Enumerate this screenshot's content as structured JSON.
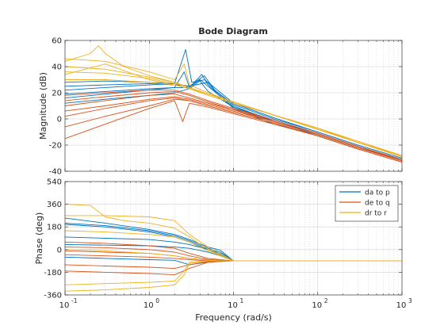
{
  "chart_data": {
    "type": "line",
    "title": "Bode Diagram",
    "xlabel": "Frequency  (rad/s)",
    "x_scale": "log",
    "xlim": [
      0.1,
      1000
    ],
    "x_ticks": [
      {
        "value": 0.1,
        "base": "10",
        "exp": "-1"
      },
      {
        "value": 1,
        "base": "10",
        "exp": "0"
      },
      {
        "value": 10,
        "base": "10",
        "exp": "1"
      },
      {
        "value": 100,
        "base": "10",
        "exp": "2"
      },
      {
        "value": 1000,
        "base": "10",
        "exp": "3"
      }
    ],
    "grid": true,
    "colors": {
      "da to p": "#0072BD",
      "de to q": "#D95319",
      "dr to r": "#EDB120"
    },
    "legend": {
      "placement": "top-right of phase plot",
      "entries": [
        "da to p",
        "de to q",
        "dr to r"
      ]
    },
    "magnitude": {
      "ylabel": "Magnitude (dB)",
      "ylim": [
        -40,
        60
      ],
      "y_ticks": [
        -40,
        -20,
        0,
        20,
        40,
        60
      ],
      "series": [
        {
          "name": "da to p",
          "x": [
            0.1,
            0.3,
            1,
            2,
            2.6,
            3,
            4.2,
            5,
            10,
            30,
            100,
            300,
            1000
          ],
          "y": [
            16,
            19,
            22,
            24,
            36,
            24,
            34,
            26,
            8,
            -4,
            -12,
            -22,
            -31
          ]
        },
        {
          "name": "da to p",
          "x": [
            0.1,
            0.3,
            1,
            2,
            2.7,
            3.2,
            4.6,
            6,
            10,
            30,
            100,
            300,
            1000
          ],
          "y": [
            22,
            24,
            26,
            27,
            53,
            28,
            30,
            22,
            10,
            -2,
            -11,
            -21,
            -31
          ]
        },
        {
          "name": "da to p",
          "x": [
            0.1,
            0.3,
            1,
            2,
            3,
            4,
            5,
            10,
            30,
            100,
            300,
            1000
          ],
          "y": [
            12,
            15,
            18,
            20,
            23,
            29,
            21,
            9,
            -2,
            -12,
            -22,
            -32
          ]
        },
        {
          "name": "da to p",
          "x": [
            0.1,
            0.3,
            1,
            2,
            3,
            4.5,
            6,
            10,
            30,
            100,
            300,
            1000
          ],
          "y": [
            28,
            29,
            28,
            27,
            25,
            33,
            22,
            11,
            0,
            -10,
            -20,
            -30
          ]
        },
        {
          "name": "da to p",
          "x": [
            0.1,
            0.3,
            1,
            2,
            3,
            4,
            10,
            30,
            100,
            300,
            1000
          ],
          "y": [
            19,
            21,
            23,
            24,
            24,
            30,
            9,
            -1,
            -11,
            -21,
            -31
          ]
        },
        {
          "name": "da to p",
          "x": [
            0.1,
            0.3,
            1,
            2,
            3,
            5,
            10,
            30,
            100,
            300,
            1000
          ],
          "y": [
            25,
            26,
            27,
            26,
            25,
            28,
            12,
            1,
            -10,
            -20,
            -30
          ]
        },
        {
          "name": "de to q",
          "x": [
            0.1,
            0.3,
            1,
            2,
            2.5,
            3,
            5,
            10,
            30,
            100,
            300,
            1000
          ],
          "y": [
            -15,
            -4,
            8,
            14,
            -2,
            12,
            9,
            4,
            -4,
            -13,
            -23,
            -33
          ]
        },
        {
          "name": "de to q",
          "x": [
            0.1,
            0.3,
            1,
            2,
            3,
            5,
            10,
            30,
            100,
            300,
            1000
          ],
          "y": [
            2,
            8,
            14,
            16,
            14,
            10,
            5,
            -3,
            -13,
            -23,
            -33
          ]
        },
        {
          "name": "de to q",
          "x": [
            0.1,
            0.3,
            1,
            2,
            3,
            5,
            10,
            30,
            100,
            300,
            1000
          ],
          "y": [
            6,
            10,
            15,
            17,
            15,
            11,
            6,
            -2,
            -12,
            -22,
            -32
          ]
        },
        {
          "name": "de to q",
          "x": [
            0.1,
            0.3,
            1,
            2,
            3,
            5,
            10,
            30,
            100,
            300,
            1000
          ],
          "y": [
            10,
            14,
            18,
            19,
            16,
            12,
            7,
            -2,
            -12,
            -22,
            -32
          ]
        },
        {
          "name": "de to q",
          "x": [
            0.1,
            0.3,
            1,
            2,
            3,
            5,
            10,
            30,
            100,
            300,
            1000
          ],
          "y": [
            14,
            17,
            20,
            21,
            18,
            13,
            7,
            -1,
            -11,
            -21,
            -31
          ]
        },
        {
          "name": "de to q",
          "x": [
            0.1,
            0.3,
            1,
            2,
            3,
            5,
            10,
            30,
            100,
            300,
            1000
          ],
          "y": [
            18,
            20,
            22,
            22,
            19,
            14,
            8,
            -1,
            -11,
            -21,
            -32
          ]
        },
        {
          "name": "de to q",
          "x": [
            0.1,
            0.3,
            1,
            2,
            3,
            5,
            10,
            30,
            100,
            300,
            1000
          ],
          "y": [
            -6,
            2,
            10,
            15,
            14,
            10,
            5,
            -3,
            -13,
            -23,
            -33
          ]
        },
        {
          "name": "dr to r",
          "x": [
            0.1,
            0.2,
            0.25,
            0.3,
            0.5,
            1,
            2,
            3,
            5,
            10,
            30,
            100,
            300,
            1000
          ],
          "y": [
            44,
            50,
            56,
            50,
            40,
            33,
            28,
            24,
            19,
            13,
            3,
            -7,
            -17,
            -28
          ]
        },
        {
          "name": "dr to r",
          "x": [
            0.1,
            0.3,
            1,
            2,
            2.6,
            3,
            5,
            10,
            30,
            100,
            300,
            1000
          ],
          "y": [
            46,
            44,
            36,
            30,
            42,
            26,
            20,
            13,
            3,
            -8,
            -18,
            -28
          ]
        },
        {
          "name": "dr to r",
          "x": [
            0.1,
            0.3,
            1,
            2,
            3,
            5,
            10,
            30,
            100,
            300,
            1000
          ],
          "y": [
            40,
            38,
            32,
            28,
            24,
            19,
            13,
            3,
            -7,
            -18,
            -28
          ]
        },
        {
          "name": "dr to r",
          "x": [
            0.1,
            0.3,
            1,
            2,
            3,
            5,
            10,
            30,
            100,
            300,
            1000
          ],
          "y": [
            36,
            35,
            31,
            27,
            24,
            19,
            13,
            3,
            -7,
            -18,
            -28
          ]
        },
        {
          "name": "dr to r",
          "x": [
            0.1,
            0.3,
            1,
            2,
            3,
            5,
            10,
            30,
            100,
            300,
            1000
          ],
          "y": [
            30,
            30,
            28,
            26,
            23,
            19,
            13,
            3,
            -8,
            -18,
            -29
          ]
        },
        {
          "name": "dr to r",
          "x": [
            0.1,
            0.3,
            1,
            2,
            3,
            5,
            10,
            30,
            100,
            300,
            1000
          ],
          "y": [
            34,
            42,
            30,
            26,
            23,
            18,
            12,
            3,
            -8,
            -18,
            -29
          ]
        }
      ]
    },
    "phase": {
      "ylabel": "Phase (deg)",
      "ylim": [
        -360,
        540
      ],
      "y_ticks": [
        -360,
        -180,
        0,
        180,
        360,
        540
      ],
      "series": [
        {
          "name": "da to p",
          "x": [
            0.1,
            0.3,
            1,
            2,
            3,
            5,
            7,
            10,
            1000
          ],
          "y": [
            250,
            210,
            160,
            120,
            80,
            20,
            -5,
            -90,
            -90
          ]
        },
        {
          "name": "da to p",
          "x": [
            0.1,
            0.3,
            1,
            2,
            3,
            5,
            7,
            10,
            1000
          ],
          "y": [
            210,
            190,
            150,
            110,
            70,
            10,
            -20,
            -90,
            -90
          ]
        },
        {
          "name": "da to p",
          "x": [
            0.1,
            0.3,
            1,
            2,
            3,
            5,
            7,
            10,
            1000
          ],
          "y": [
            200,
            180,
            140,
            100,
            60,
            0,
            -30,
            -90,
            -90
          ]
        },
        {
          "name": "da to p",
          "x": [
            0.1,
            0.3,
            1,
            2,
            3,
            5,
            7,
            10,
            1000
          ],
          "y": [
            100,
            90,
            80,
            60,
            40,
            0,
            -40,
            -90,
            -90
          ]
        },
        {
          "name": "da to p",
          "x": [
            0.1,
            0.3,
            1,
            2,
            3,
            5,
            7,
            10,
            1000
          ],
          "y": [
            40,
            35,
            30,
            20,
            10,
            -20,
            -50,
            -90,
            -90
          ]
        },
        {
          "name": "da to p",
          "x": [
            0.1,
            0.3,
            1,
            2,
            3,
            5,
            8,
            1000
          ],
          "y": [
            -60,
            -70,
            -80,
            -85,
            -120,
            -100,
            -90,
            -90
          ]
        },
        {
          "name": "de to q",
          "x": [
            0.1,
            0.3,
            1,
            2,
            3,
            5,
            10,
            1000
          ],
          "y": [
            20,
            15,
            0,
            -20,
            -50,
            -80,
            -90,
            -90
          ]
        },
        {
          "name": "de to q",
          "x": [
            0.1,
            0.3,
            1,
            2,
            3,
            5,
            10,
            1000
          ],
          "y": [
            -10,
            -20,
            -30,
            -50,
            -70,
            -85,
            -90,
            -90
          ]
        },
        {
          "name": "de to q",
          "x": [
            0.1,
            0.3,
            1,
            2,
            3,
            5,
            10,
            1000
          ],
          "y": [
            -40,
            -50,
            -60,
            -70,
            -80,
            -90,
            -90,
            -90
          ]
        },
        {
          "name": "de to q",
          "x": [
            0.1,
            0.3,
            1,
            2,
            3,
            5,
            10,
            1000
          ],
          "y": [
            -120,
            -130,
            -140,
            -150,
            -120,
            -95,
            -90,
            -90
          ]
        },
        {
          "name": "de to q",
          "x": [
            0.1,
            0.3,
            1,
            2,
            3,
            5,
            10,
            1000
          ],
          "y": [
            -170,
            -180,
            -190,
            -200,
            -150,
            -100,
            -90,
            -90
          ]
        },
        {
          "name": "de to q",
          "x": [
            0.1,
            0.3,
            1,
            2,
            3,
            5,
            10,
            1000
          ],
          "y": [
            60,
            50,
            30,
            10,
            -30,
            -70,
            -90,
            -90
          ]
        },
        {
          "name": "dr to r",
          "x": [
            0.1,
            0.2,
            0.3,
            0.5,
            1,
            2,
            3,
            5,
            10,
            1000
          ],
          "y": [
            360,
            350,
            260,
            230,
            210,
            170,
            100,
            0,
            -90,
            -90
          ]
        },
        {
          "name": "dr to r",
          "x": [
            0.1,
            0.3,
            1,
            2,
            3,
            5,
            10,
            1000
          ],
          "y": [
            270,
            270,
            260,
            230,
            120,
            20,
            -90,
            -90
          ]
        },
        {
          "name": "dr to r",
          "x": [
            0.1,
            0.3,
            1,
            2,
            3,
            5,
            10,
            1000
          ],
          "y": [
            150,
            140,
            120,
            100,
            60,
            -10,
            -90,
            -90
          ]
        },
        {
          "name": "dr to r",
          "x": [
            0.1,
            0.3,
            1,
            2,
            2.6,
            3,
            5,
            10,
            1000
          ],
          "y": [
            -280,
            -270,
            -260,
            -250,
            -170,
            -100,
            -90,
            -90,
            -90
          ]
        },
        {
          "name": "dr to r",
          "x": [
            0.1,
            0.3,
            1,
            2,
            2.6,
            3,
            5,
            10,
            1000
          ],
          "y": [
            -330,
            -320,
            -300,
            -280,
            -200,
            -110,
            -90,
            -90,
            -90
          ]
        },
        {
          "name": "dr to r",
          "x": [
            0.1,
            0.3,
            1,
            2,
            3,
            5,
            10,
            1000
          ],
          "y": [
            0,
            -10,
            -30,
            -50,
            -70,
            -85,
            -90,
            -90
          ]
        }
      ]
    }
  }
}
